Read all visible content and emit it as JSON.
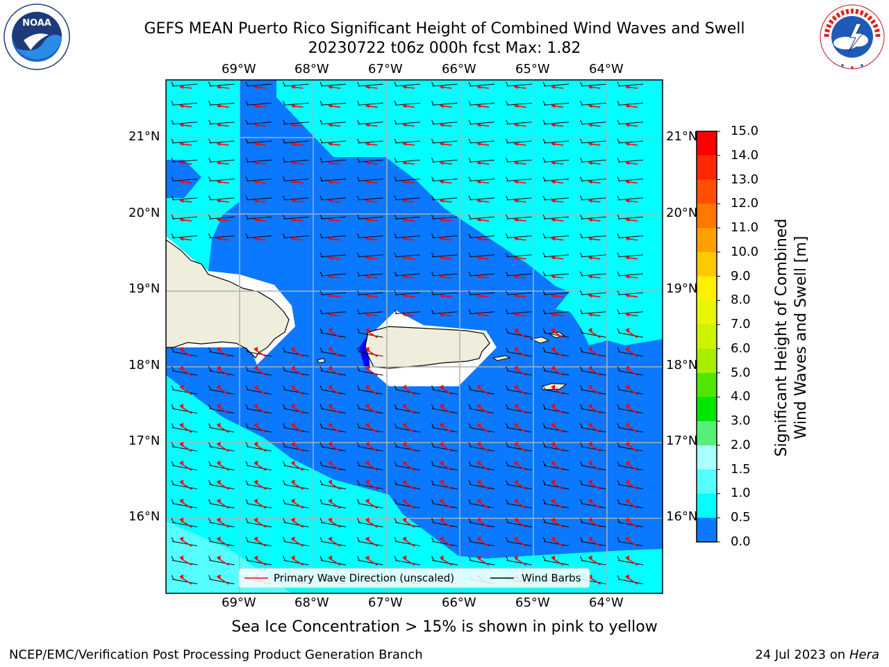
{
  "header": {
    "title_line1": "GEFS MEAN Puerto Rico Significant Height of Combined Wind Waves and Swell",
    "title_line2": "20230722 t06z 000h fcst   Max: 1.82"
  },
  "logos": {
    "left": "NOAA",
    "left_ring_text": "NATIONAL OCEANIC AND ATMOSPHERIC ADMINISTRATION · U.S. DEPARTMENT OF COMMERCE",
    "right_ring_text": "NATIONAL WEATHER SERVICE"
  },
  "map": {
    "lon_labels": [
      "69°W",
      "68°W",
      "67°W",
      "66°W",
      "65°W",
      "64°W"
    ],
    "lat_labels": [
      "21°N",
      "20°N",
      "19°N",
      "18°N",
      "17°N",
      "16°N"
    ],
    "legend": {
      "primary_wave": "Primary Wave Direction (unscaled)",
      "wind_barbs": "Wind Barbs"
    },
    "colors": {
      "land": "#efeddc",
      "band_0_5": "#0000ff",
      "band_0_5_1": "#0a78ff",
      "band_1_1_5": "#00ffff",
      "band_1_5_2": "#55ffff",
      "band_2_3": "#aaffff",
      "ice_free": "#ffffff",
      "wave_arrow": "#ff0000"
    }
  },
  "colorbar": {
    "title_line1": "Significant Height of Combined",
    "title_line2": "Wind Waves and Swell [m]",
    "ticks": [
      "15.0",
      "14.0",
      "13.0",
      "12.0",
      "11.0",
      "10.0",
      "9.0",
      "8.0",
      "7.0",
      "6.0",
      "5.0",
      "4.0",
      "3.0",
      "2.0",
      "1.5",
      "1.0",
      "0.5",
      "0.0"
    ],
    "colors": [
      "#ff0000",
      "#ff2800",
      "#ff5000",
      "#ff7800",
      "#ffa000",
      "#ffc800",
      "#fff000",
      "#e8f500",
      "#cdf200",
      "#a9ee00",
      "#50e600",
      "#00e600",
      "#55f078",
      "#aaffff",
      "#55ffff",
      "#00ffff",
      "#0a78ff",
      "#0000ff"
    ]
  },
  "footer": {
    "note": "Sea Ice Concentration > 15% is shown in pink to yellow",
    "left": "NCEP/EMC/Verification Post Processing Product Generation Branch",
    "right_prefix": "24 Jul 2023 on ",
    "right_host": "Hera"
  }
}
